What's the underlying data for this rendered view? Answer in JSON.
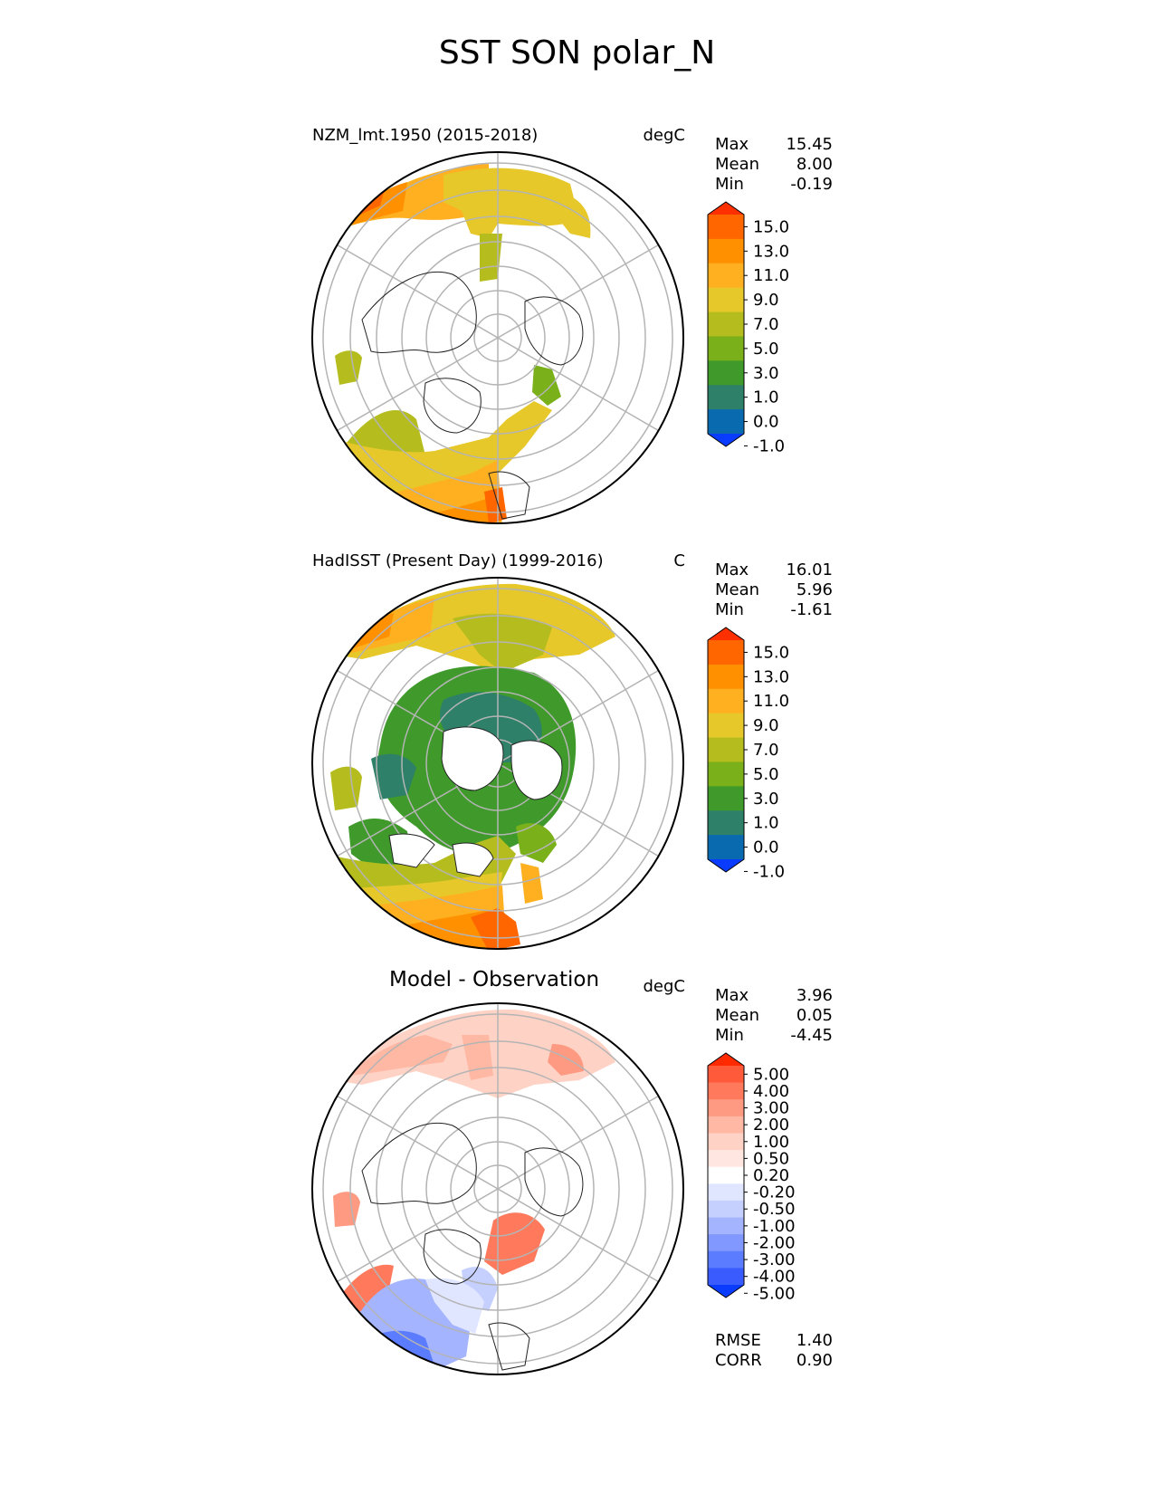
{
  "figure_title": "SST SON polar_N",
  "chart_data": [
    {
      "type": "heatmap",
      "projection": "north-polar-stereographic",
      "title": "NZM_lmt.1950 (2015-2018)",
      "units": "degC",
      "stats": {
        "Max": "15.45",
        "Mean": "8.00",
        "Min": "-0.19"
      },
      "colorbar": {
        "ticks": [
          "15.0",
          "13.0",
          "11.0",
          "9.0",
          "7.0",
          "5.0",
          "3.0",
          "1.0",
          "0.0",
          "-1.0"
        ],
        "colors": [
          "#ff3000",
          "#ff6600",
          "#ff9000",
          "#ffb020",
          "#e6c82a",
          "#b5bd1e",
          "#7ab01a",
          "#3f9a2b",
          "#2e8068",
          "#0a6ab0",
          "#0a3cff"
        ]
      }
    },
    {
      "type": "heatmap",
      "projection": "north-polar-stereographic",
      "title": "HadISST (Present Day) (1999-2016)",
      "units": "C",
      "stats": {
        "Max": "16.01",
        "Mean": "5.96",
        "Min": "-1.61"
      },
      "colorbar": {
        "ticks": [
          "15.0",
          "13.0",
          "11.0",
          "9.0",
          "7.0",
          "5.0",
          "3.0",
          "1.0",
          "0.0",
          "-1.0"
        ],
        "colors": [
          "#ff3000",
          "#ff6600",
          "#ff9000",
          "#ffb020",
          "#e6c82a",
          "#b5bd1e",
          "#7ab01a",
          "#3f9a2b",
          "#2e8068",
          "#0a6ab0",
          "#0a3cff"
        ]
      }
    },
    {
      "type": "heatmap",
      "projection": "north-polar-stereographic",
      "title": "Model - Observation",
      "units": "degC",
      "stats": {
        "Max": "3.96",
        "Mean": "0.05",
        "Min": "-4.45"
      },
      "colorbar": {
        "ticks": [
          "5.00",
          "4.00",
          "3.00",
          "2.00",
          "1.00",
          "0.50",
          "0.20",
          "-0.20",
          "-0.50",
          "-1.00",
          "-2.00",
          "-3.00",
          "-4.00",
          "-5.00"
        ],
        "colors": [
          "#ff2a00",
          "#ff5a3a",
          "#ff7a5c",
          "#ff9a82",
          "#ffb8a4",
          "#ffd2c6",
          "#ffe6e0",
          "#ffffff",
          "#e0e6ff",
          "#c6d0ff",
          "#a4b4ff",
          "#8098ff",
          "#5c7cff",
          "#3a5cff",
          "#0a3cff"
        ]
      },
      "extra_stats": {
        "RMSE": "1.40",
        "CORR": "0.90"
      }
    }
  ]
}
